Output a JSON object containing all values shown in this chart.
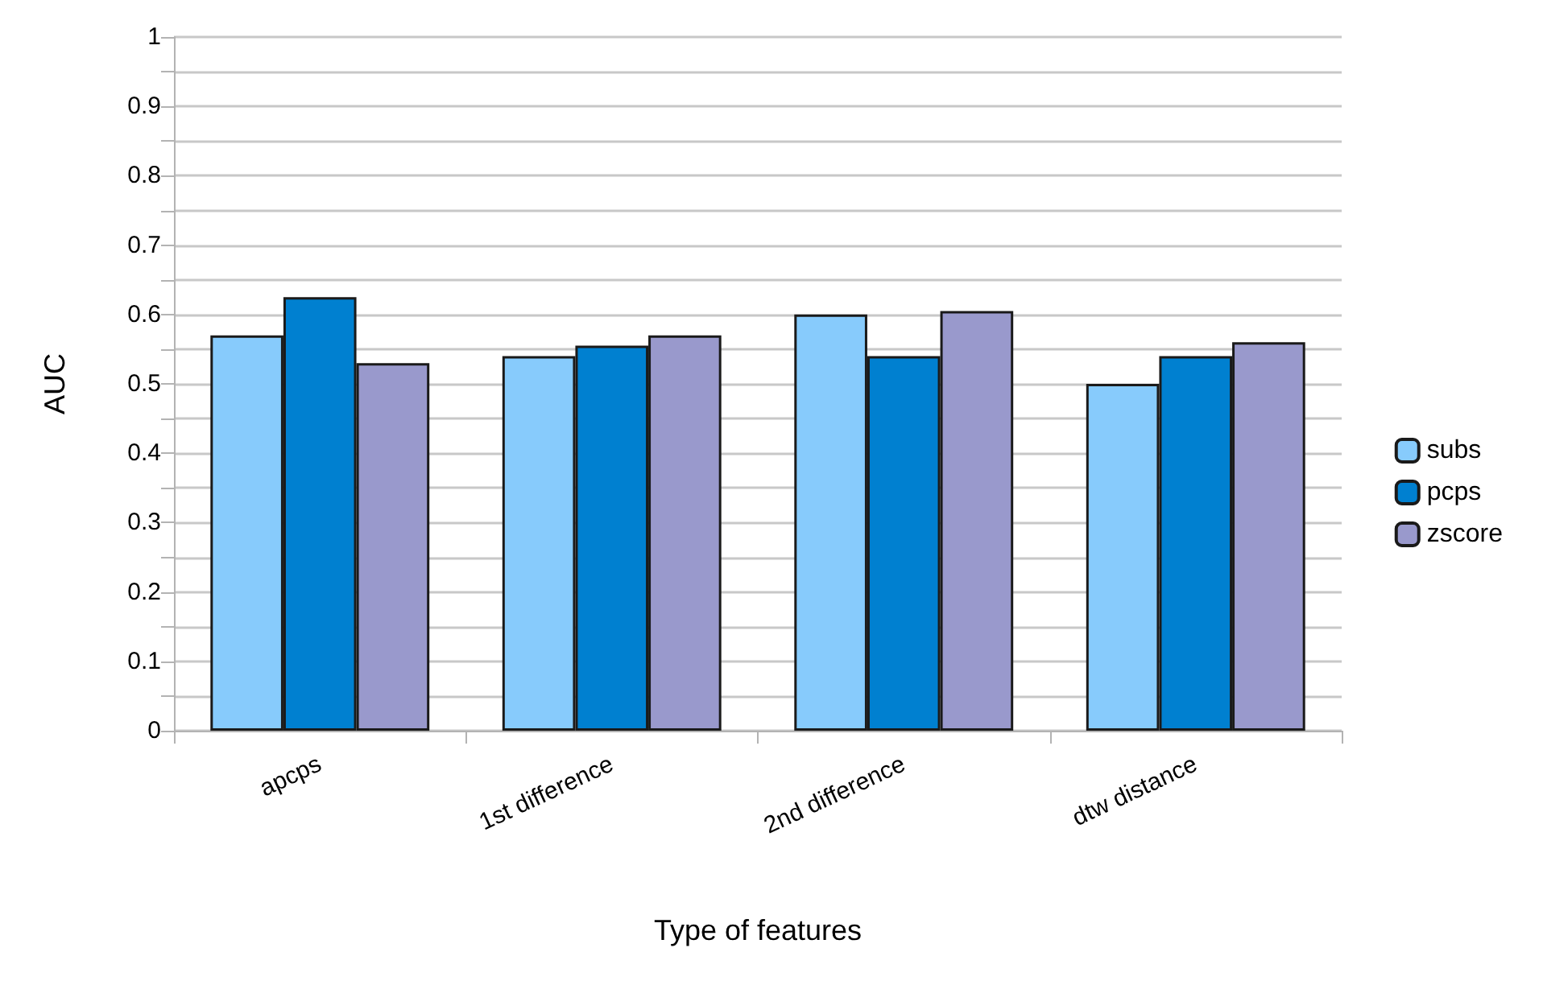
{
  "chart_data": {
    "type": "bar",
    "xlabel": "Type of features",
    "ylabel": "AUC",
    "categories": [
      "apcps",
      "1st difference",
      "2nd difference",
      "dtw distance"
    ],
    "series": [
      {
        "name": "subs",
        "color": "#87cbfc",
        "values": [
          0.57,
          0.54,
          0.6,
          0.5
        ]
      },
      {
        "name": "pcps",
        "color": "#0080d0",
        "values": [
          0.625,
          0.555,
          0.54,
          0.54
        ]
      },
      {
        "name": "zscore",
        "color": "#9999cc",
        "values": [
          0.53,
          0.57,
          0.605,
          0.56
        ]
      }
    ],
    "ylim": [
      0,
      1
    ],
    "yticks": [
      0,
      {
        "value": 0.05,
        "label": null
      },
      0.1,
      {
        "value": 0.15,
        "label": null
      },
      0.2,
      {
        "value": 0.25,
        "label": null
      },
      0.3,
      {
        "value": 0.35,
        "label": null
      },
      0.4,
      {
        "value": 0.45,
        "label": null
      },
      0.5,
      {
        "value": 0.55,
        "label": null
      },
      0.6,
      {
        "value": 0.65,
        "label": null
      },
      0.7,
      {
        "value": 0.75,
        "label": null
      },
      0.8,
      {
        "value": 0.85,
        "label": null
      },
      0.9,
      {
        "value": 0.95,
        "label": null
      },
      1
    ],
    "grid": "y",
    "legend": "right"
  }
}
